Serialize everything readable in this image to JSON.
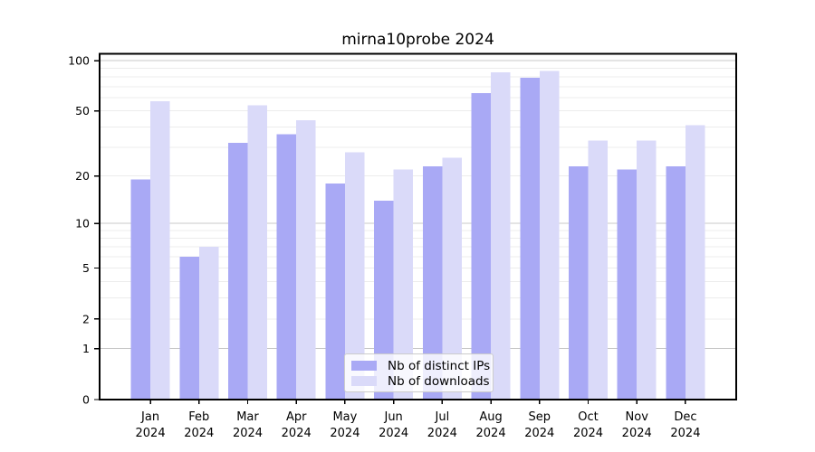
{
  "title": "mirna10probe 2024",
  "colors": {
    "ips": "#a9a9f5",
    "downloads": "#dadaf9",
    "major_grid": "#c8c8c8",
    "minor_grid": "#ececec",
    "spine": "#000000",
    "text": "#000000",
    "legend_border": "#cccccc"
  },
  "legend": {
    "items": [
      {
        "label": "Nb of distinct IPs",
        "series": "ips"
      },
      {
        "label": "Nb of downloads",
        "series": "downloads"
      }
    ]
  },
  "y_axis": {
    "tick_labels": [
      100,
      50,
      20,
      10,
      5,
      2,
      1,
      0
    ],
    "major_gridlines": [
      1,
      10,
      100
    ],
    "minor_gridlines": [
      2,
      3,
      4,
      5,
      6,
      7,
      8,
      9,
      20,
      30,
      40,
      50,
      60,
      70,
      80,
      90
    ]
  },
  "x_axis": {
    "months": [
      "Jan",
      "Feb",
      "Mar",
      "Apr",
      "May",
      "Jun",
      "Jul",
      "Aug",
      "Sep",
      "Oct",
      "Nov",
      "Dec"
    ],
    "year": "2024"
  },
  "chart_data": {
    "type": "bar",
    "title": "mirna10probe 2024",
    "categories": [
      "Jan 2024",
      "Feb 2024",
      "Mar 2024",
      "Apr 2024",
      "May 2024",
      "Jun 2024",
      "Jul 2024",
      "Aug 2024",
      "Sep 2024",
      "Oct 2024",
      "Nov 2024",
      "Dec 2024"
    ],
    "series": [
      {
        "name": "Nb of distinct IPs",
        "color": "#a9a9f5",
        "values": [
          19,
          6,
          32,
          36,
          18,
          14,
          23,
          64,
          79,
          23,
          22,
          23
        ]
      },
      {
        "name": "Nb of downloads",
        "color": "#dadaf9",
        "values": [
          57,
          7,
          54,
          44,
          28,
          22,
          26,
          85,
          87,
          33,
          33,
          41
        ]
      }
    ],
    "xlabel": "",
    "ylabel": "",
    "yscale": "log1p",
    "ylim": [
      0,
      110
    ],
    "yticks": [
      0,
      1,
      2,
      5,
      10,
      20,
      50,
      100
    ],
    "grid": "on",
    "legend_position": "lower center"
  }
}
